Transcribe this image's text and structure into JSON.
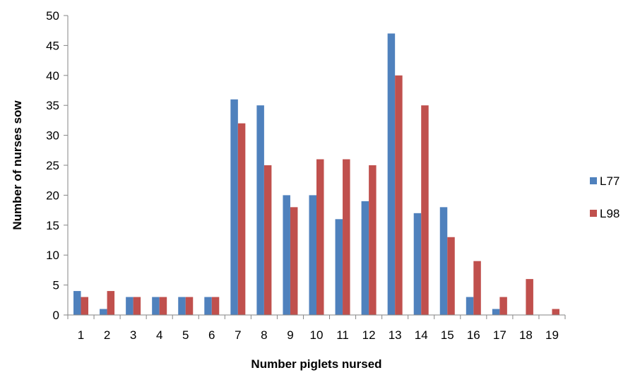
{
  "chart_data": {
    "type": "bar",
    "title": "",
    "xlabel": "Number piglets nursed",
    "ylabel": "Number of nurses sow",
    "categories": [
      "1",
      "2",
      "3",
      "4",
      "5",
      "6",
      "7",
      "8",
      "9",
      "10",
      "11",
      "12",
      "13",
      "14",
      "15",
      "16",
      "17",
      "18",
      "19"
    ],
    "series": [
      {
        "name": "L77",
        "color": "#4f81bd",
        "values": [
          4,
          1,
          3,
          3,
          3,
          3,
          36,
          35,
          20,
          20,
          16,
          19,
          47,
          17,
          18,
          3,
          1,
          0,
          0
        ]
      },
      {
        "name": "L98",
        "color": "#c0504d",
        "values": [
          3,
          4,
          3,
          3,
          3,
          3,
          32,
          25,
          18,
          26,
          26,
          25,
          40,
          35,
          13,
          9,
          3,
          6,
          1
        ]
      }
    ],
    "ylim": [
      0,
      50
    ],
    "yticks": [
      0,
      5,
      10,
      15,
      20,
      25,
      30,
      35,
      40,
      45,
      50
    ],
    "grid": false,
    "legend_position": "right"
  }
}
